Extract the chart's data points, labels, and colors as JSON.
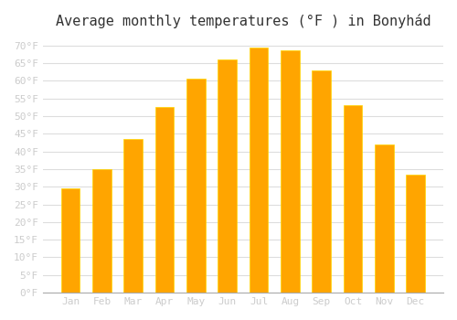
{
  "title": "Average monthly temperatures (°F ) in Bonyhád",
  "months": [
    "Jan",
    "Feb",
    "Mar",
    "Apr",
    "May",
    "Jun",
    "Jul",
    "Aug",
    "Sep",
    "Oct",
    "Nov",
    "Dec"
  ],
  "values": [
    29.5,
    35.0,
    43.5,
    52.5,
    60.5,
    66.0,
    69.5,
    68.5,
    63.0,
    53.0,
    42.0,
    33.5
  ],
  "bar_color": "#FFA500",
  "bar_edge_color": "#FFD700",
  "background_color": "#ffffff",
  "grid_color": "#dddddd",
  "text_color": "#cccccc",
  "title_color": "#333333",
  "ylim": [
    0,
    72
  ],
  "ytick_step": 5,
  "title_fontsize": 11,
  "tick_fontsize": 8
}
